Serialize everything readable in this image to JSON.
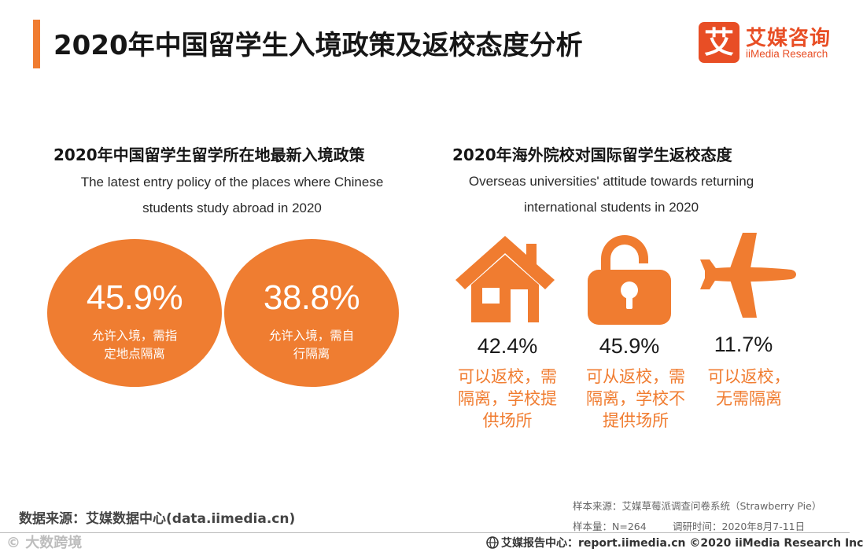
{
  "header": {
    "title": "2020年中国留学生入境政策及返校态度分析",
    "accent_color": "#f07c30"
  },
  "logo": {
    "mark": "艾",
    "name_cn": "艾媒咨询",
    "name_en": "iiMedia Research",
    "color": "#e84e25"
  },
  "left_panel": {
    "title": "2020年中国留学生留学所在地最新入境政策",
    "subtitle_line1": "The latest entry policy of the places where Chinese",
    "subtitle_line2": "students study abroad in 2020"
  },
  "right_panel": {
    "title": "2020年海外院校对国际留学生返校态度",
    "subtitle_line1": "Overseas universities' attitude towards returning",
    "subtitle_line2": "international students in 2020"
  },
  "chart_data": [
    {
      "type": "bubble",
      "title": "2020年中国留学生留学所在地最新入境政策",
      "subtitle": "The latest entry policy of the places where Chinese students study abroad in 2020",
      "items": [
        {
          "label_line1": "允许入境，需指",
          "label_line2": "定地点隔离",
          "value_text": "45.9%",
          "value": 45.9
        },
        {
          "label_line1": "允许入境，需自",
          "label_line2": "行隔离",
          "value_text": "38.8%",
          "value": 38.8
        }
      ],
      "color": "#ef7d31"
    },
    {
      "type": "icon-stat",
      "title": "2020年海外院校对国际留学生返校态度",
      "subtitle": "Overseas universities' attitude towards returning international students in 2020",
      "items": [
        {
          "icon": "house-icon",
          "value_text": "42.4%",
          "value": 42.4,
          "label_lines": [
            "可以返校，需",
            "隔离，学校提",
            "供场所"
          ]
        },
        {
          "icon": "unlocked-padlock-icon",
          "value_text": "45.9%",
          "value": 45.9,
          "label_lines": [
            "可从返校，需",
            "隔离，学校不",
            "提供场所"
          ]
        },
        {
          "icon": "airplane-icon",
          "value_text": "11.7%",
          "value": 11.7,
          "label_lines": [
            "可以返校，",
            "无需隔离"
          ]
        }
      ],
      "color": "#f07c30"
    }
  ],
  "footer": {
    "data_source": "数据来源：艾媒数据中心(data.iimedia.cn)",
    "sample_source": "样本来源：艾媒草莓派调查问卷系统（Strawberry Pie）",
    "sample_size": "样本量：N=264",
    "survey_time": "调研时间：2020年8月7-11日",
    "report_center": "艾媒报告中心：report.iimedia.cn   ©2020  iiMedia Research  Inc",
    "watermark": "©  大数跨境"
  }
}
